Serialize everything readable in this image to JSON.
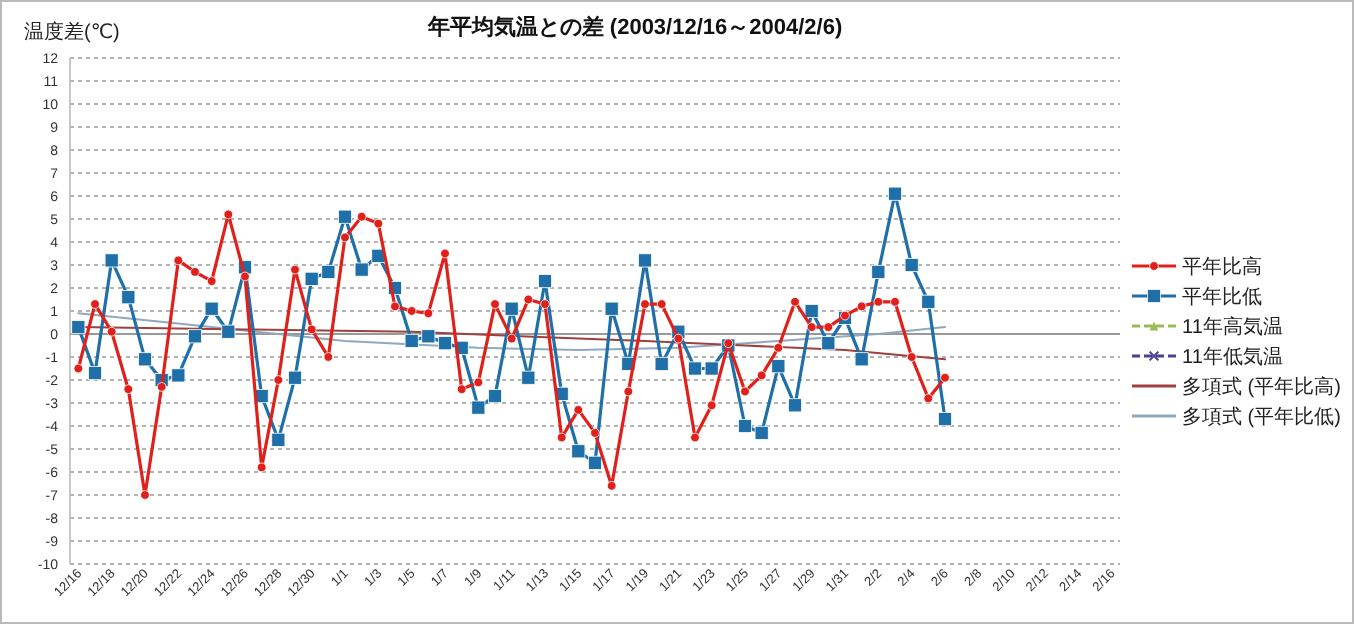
{
  "chart_data": {
    "type": "line",
    "title": "年平均気温との差  (2003/12/16～2004/2/6)",
    "ylabel": "温度差(℃)",
    "x": [
      "2003-12-16",
      "2003-12-17",
      "2003-12-18",
      "2003-12-19",
      "2003-12-20",
      "2003-12-21",
      "2003-12-22",
      "2003-12-23",
      "2003-12-24",
      "2003-12-25",
      "2003-12-26",
      "2003-12-27",
      "2003-12-28",
      "2003-12-29",
      "2003-12-30",
      "2003-12-31",
      "2004-01-01",
      "2004-01-02",
      "2004-01-03",
      "2004-01-04",
      "2004-01-05",
      "2004-01-06",
      "2004-01-07",
      "2004-01-08",
      "2004-01-09",
      "2004-01-10",
      "2004-01-11",
      "2004-01-12",
      "2004-01-13",
      "2004-01-14",
      "2004-01-15",
      "2004-01-16",
      "2004-01-17",
      "2004-01-18",
      "2004-01-19",
      "2004-01-20",
      "2004-01-21",
      "2004-01-22",
      "2004-01-23",
      "2004-01-24",
      "2004-01-25",
      "2004-01-26",
      "2004-01-27",
      "2004-01-28",
      "2004-01-29",
      "2004-01-30",
      "2004-01-31",
      "2004-02-01",
      "2004-02-02",
      "2004-02-03",
      "2004-02-04",
      "2004-02-05",
      "2004-02-06"
    ],
    "series": [
      {
        "name": "平年比高",
        "color": "#e0201b",
        "marker": "circle",
        "line_style": "solid",
        "values": [
          -1.5,
          1.3,
          0.1,
          -2.4,
          -7.0,
          -2.3,
          3.2,
          2.7,
          2.3,
          5.2,
          2.5,
          -5.8,
          -2.0,
          2.8,
          0.2,
          -1.0,
          4.2,
          5.1,
          4.8,
          1.2,
          1.0,
          0.9,
          3.5,
          -2.4,
          -2.1,
          1.3,
          -0.2,
          1.5,
          1.3,
          -4.5,
          -3.3,
          -4.3,
          -6.6,
          -2.5,
          1.3,
          1.3,
          -0.2,
          -4.5,
          -3.1,
          -0.4,
          -2.5,
          -1.8,
          -0.6,
          1.4,
          0.3,
          0.3,
          0.8,
          1.2,
          1.4,
          1.4,
          -1.0,
          -2.8,
          -1.9
        ]
      },
      {
        "name": "平年比低",
        "color": "#1f6fa8",
        "marker": "square",
        "line_style": "solid",
        "values": [
          0.3,
          -1.7,
          3.2,
          1.6,
          -1.1,
          -2.0,
          -1.8,
          -0.1,
          1.1,
          0.1,
          2.9,
          -2.7,
          -4.6,
          -1.9,
          2.4,
          2.7,
          5.1,
          2.8,
          3.4,
          2.0,
          -0.3,
          -0.1,
          -0.4,
          -0.6,
          -3.2,
          -2.7,
          1.1,
          -1.9,
          2.3,
          -2.6,
          -5.1,
          -5.6,
          1.1,
          -1.3,
          3.2,
          -1.3,
          0.1,
          -1.5,
          -1.5,
          -0.5,
          -4.0,
          -4.3,
          -1.4,
          -3.1,
          1.0,
          -0.4,
          0.7,
          -1.1,
          2.7,
          6.1,
          3.0,
          1.4,
          -3.7
        ]
      },
      {
        "name": "11年高気温",
        "color": "#9bbb59",
        "marker": "triangle",
        "line_style": "dashed",
        "values": [
          null,
          null,
          null,
          null,
          null,
          null,
          null,
          null,
          null,
          null,
          null,
          null,
          null,
          null,
          null,
          null,
          null,
          null,
          null,
          null,
          null,
          null,
          null,
          null,
          null,
          null,
          null,
          null,
          null,
          null,
          null,
          null,
          null,
          null,
          null,
          null,
          null,
          null,
          null,
          null,
          null,
          null,
          null,
          null,
          null,
          null,
          null,
          null,
          null,
          null,
          null,
          null,
          null
        ]
      },
      {
        "name": "11年低気温",
        "color": "#4f3f8f",
        "marker": "cross",
        "line_style": "dashed",
        "values": [
          null,
          null,
          null,
          null,
          null,
          null,
          null,
          null,
          null,
          null,
          null,
          null,
          null,
          null,
          null,
          null,
          null,
          null,
          null,
          null,
          null,
          null,
          null,
          null,
          null,
          null,
          null,
          null,
          null,
          null,
          null,
          null,
          null,
          null,
          null,
          null,
          null,
          null,
          null,
          null,
          null,
          null,
          null,
          null,
          null,
          null,
          null,
          null,
          null,
          null,
          null,
          null,
          null
        ]
      },
      {
        "name": "多項式 (平年比高)",
        "color": "#a0403c",
        "marker": "none",
        "line_style": "solid",
        "x": [
          "2003-12-16",
          "2003-12-26",
          "2004-01-05",
          "2004-01-15",
          "2004-01-19",
          "2004-01-25",
          "2004-01-31",
          "2004-02-06"
        ],
        "values": [
          0.3,
          0.2,
          0.1,
          -0.2,
          -0.3,
          -0.5,
          -0.7,
          -1.1
        ]
      },
      {
        "name": "多項式 (平年比低)",
        "color": "#8fa9bf",
        "marker": "none",
        "line_style": "solid",
        "x": [
          "2003-12-16",
          "2003-12-24",
          "2004-01-01",
          "2004-01-09",
          "2004-01-15",
          "2004-01-21",
          "2004-01-27",
          "2004-02-02",
          "2004-02-06"
        ],
        "values": [
          0.9,
          0.3,
          -0.3,
          -0.6,
          -0.7,
          -0.6,
          -0.3,
          0.0,
          0.3
        ]
      }
    ],
    "xlim": [
      "2003-12-15T12:00",
      "2004-02-16T12:00"
    ],
    "xticks": [
      {
        "value": "2003-12-16",
        "label": "12/16"
      },
      {
        "value": "2003-12-18",
        "label": "12/18"
      },
      {
        "value": "2003-12-20",
        "label": "12/20"
      },
      {
        "value": "2003-12-22",
        "label": "12/22"
      },
      {
        "value": "2003-12-24",
        "label": "12/24"
      },
      {
        "value": "2003-12-26",
        "label": "12/26"
      },
      {
        "value": "2003-12-28",
        "label": "12/28"
      },
      {
        "value": "2003-12-30",
        "label": "12/30"
      },
      {
        "value": "2004-01-01",
        "label": "1/1"
      },
      {
        "value": "2004-01-03",
        "label": "1/3"
      },
      {
        "value": "2004-01-05",
        "label": "1/5"
      },
      {
        "value": "2004-01-07",
        "label": "1/7"
      },
      {
        "value": "2004-01-09",
        "label": "1/9"
      },
      {
        "value": "2004-01-11",
        "label": "1/11"
      },
      {
        "value": "2004-01-13",
        "label": "1/13"
      },
      {
        "value": "2004-01-15",
        "label": "1/15"
      },
      {
        "value": "2004-01-17",
        "label": "1/17"
      },
      {
        "value": "2004-01-19",
        "label": "1/19"
      },
      {
        "value": "2004-01-21",
        "label": "1/21"
      },
      {
        "value": "2004-01-23",
        "label": "1/23"
      },
      {
        "value": "2004-01-25",
        "label": "1/25"
      },
      {
        "value": "2004-01-27",
        "label": "1/27"
      },
      {
        "value": "2004-01-29",
        "label": "1/29"
      },
      {
        "value": "2004-01-31",
        "label": "1/31"
      },
      {
        "value": "2004-02-02",
        "label": "2/2"
      },
      {
        "value": "2004-02-04",
        "label": "2/4"
      },
      {
        "value": "2004-02-06",
        "label": "2/6"
      },
      {
        "value": "2004-02-08",
        "label": "2/8"
      },
      {
        "value": "2004-02-10",
        "label": "2/10"
      },
      {
        "value": "2004-02-12",
        "label": "2/12"
      },
      {
        "value": "2004-02-14",
        "label": "2/14"
      },
      {
        "value": "2004-02-16",
        "label": "2/16"
      }
    ],
    "ylim": [
      -10,
      12
    ],
    "yticks": [
      -10,
      -9,
      -8,
      -7,
      -6,
      -5,
      -4,
      -3,
      -2,
      -1,
      0,
      1,
      2,
      3,
      4,
      5,
      6,
      7,
      8,
      9,
      10,
      11,
      12
    ],
    "grid": "y",
    "legend": "right"
  }
}
